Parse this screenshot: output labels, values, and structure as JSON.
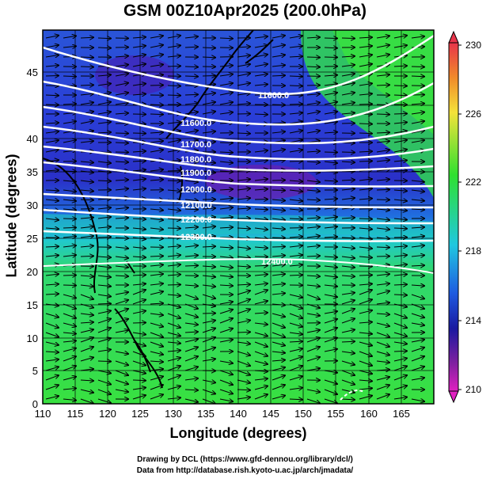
{
  "title": "GSM 00Z10Apr2025 (200.0hPa)",
  "axes": {
    "xlabel": "Longitude (degrees)",
    "ylabel": "Latitude  (degrees)",
    "x_ticks": [
      "110",
      "115",
      "120",
      "125",
      "130",
      "135",
      "140",
      "145",
      "150",
      "155",
      "160",
      "165"
    ],
    "y_ticks": [
      "0",
      "5",
      "10",
      "15",
      "20",
      "25",
      "30",
      "35",
      "40",
      "45"
    ]
  },
  "colorbar": {
    "ticks": [
      "230",
      "226",
      "222",
      "218",
      "214",
      "210"
    ],
    "colors": [
      "#e8344a",
      "#f08a2a",
      "#f4e23a",
      "#2ee030",
      "#20c8e0",
      "#1e5ae0",
      "#1a1aa0",
      "#8020a0",
      "#e020c0"
    ]
  },
  "contour_labels": [
    "11600.0",
    "11600.0",
    "11700.0",
    "11800.0",
    "11900.0",
    "12000.0",
    "12100.0",
    "12200.0",
    "12300.0",
    "12400.0"
  ],
  "credits": {
    "line1": "Drawing by DCL (https://www.gfd-dennou.org/library/dcl/)",
    "line2": "Data from http://database.rish.kyoto-u.ac.jp/arch/jmadata/"
  }
}
